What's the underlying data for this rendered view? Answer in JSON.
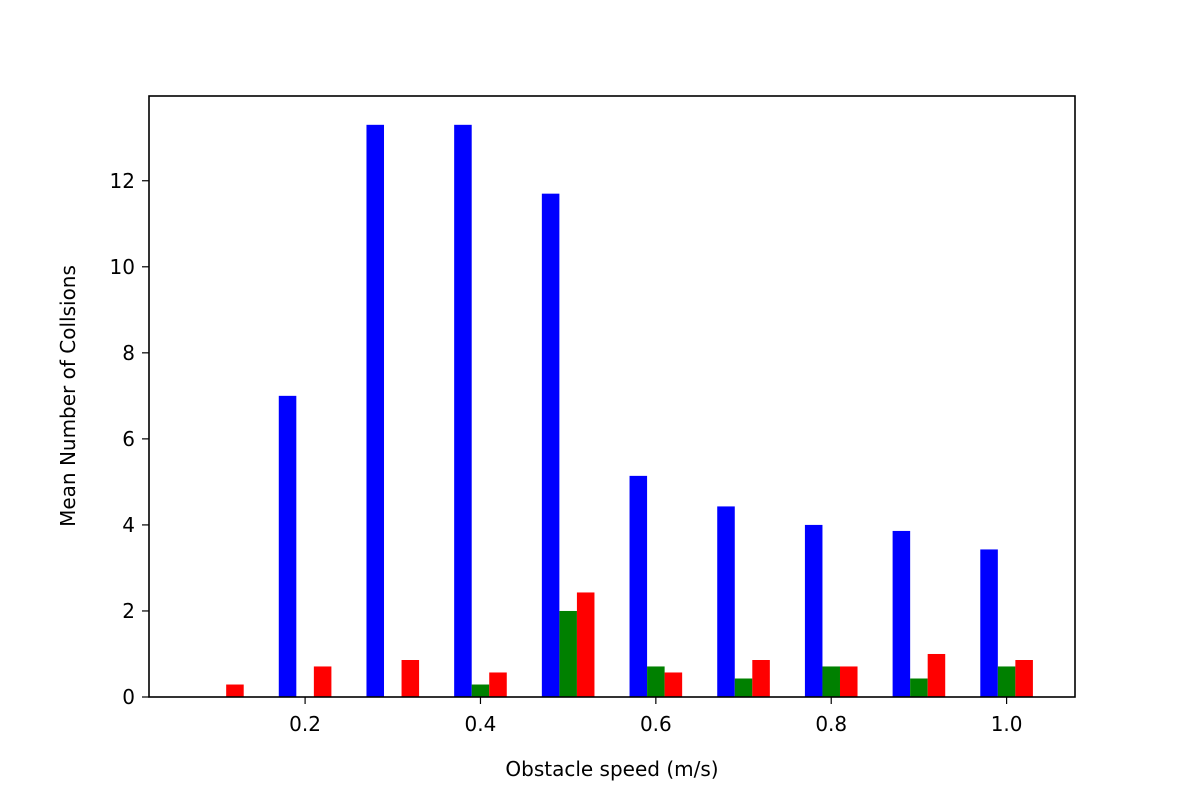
{
  "chart_data": {
    "type": "bar",
    "title": "",
    "xlabel": "Obstacle speed (m/s)",
    "ylabel": "Mean Number of Collsions",
    "x": [
      0.1,
      0.2,
      0.3,
      0.4,
      0.5,
      0.6,
      0.7,
      0.8,
      0.9,
      1.0
    ],
    "series": [
      {
        "color": "#0000ff",
        "values": [
          0,
          7.0,
          13.3,
          13.3,
          11.7,
          5.14,
          4.43,
          4.0,
          3.86,
          3.43
        ]
      },
      {
        "color": "#008000",
        "values": [
          0,
          0,
          0,
          0.29,
          2.0,
          0.71,
          0.43,
          0.71,
          0.43,
          0.71
        ]
      },
      {
        "color": "#ff0000",
        "values": [
          0.29,
          0.71,
          0.86,
          0.57,
          2.43,
          0.57,
          0.86,
          0.71,
          1.0,
          0.86
        ]
      }
    ],
    "xlim": [
      0.022,
      1.078
    ],
    "ylim": [
      0,
      13.97
    ],
    "xticks": [
      0.2,
      0.4,
      0.6,
      0.8,
      1.0
    ],
    "xtick_labels": [
      "0.2",
      "0.4",
      "0.6",
      "0.8",
      "1.0"
    ],
    "yticks": [
      0,
      2,
      4,
      6,
      8,
      10,
      12
    ],
    "ytick_labels": [
      "0",
      "2",
      "4",
      "6",
      "8",
      "10",
      "12"
    ],
    "grid": false,
    "legend": "none"
  }
}
